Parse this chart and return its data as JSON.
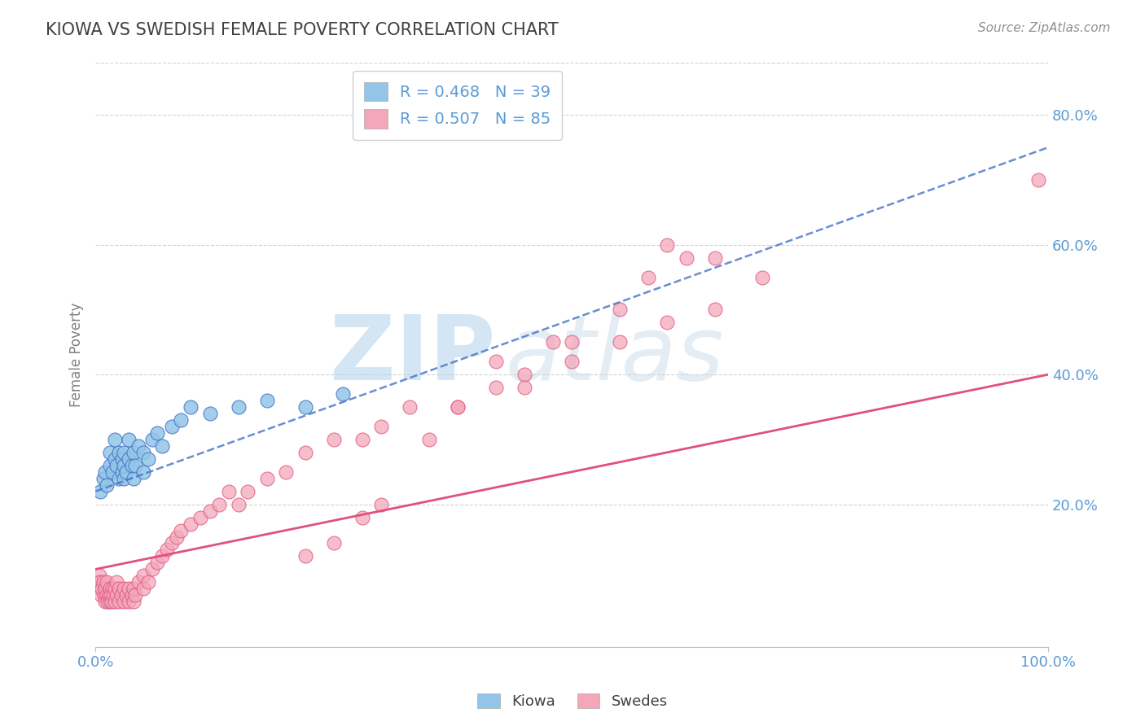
{
  "title": "KIOWA VS SWEDISH FEMALE POVERTY CORRELATION CHART",
  "source_text": "Source: ZipAtlas.com",
  "ylabel": "Female Poverty",
  "x_tick_labels": [
    "0.0%",
    "100.0%"
  ],
  "y_tick_labels": [
    "20.0%",
    "40.0%",
    "60.0%",
    "80.0%"
  ],
  "y_tick_values": [
    0.2,
    0.4,
    0.6,
    0.8
  ],
  "xlim": [
    0.0,
    1.0
  ],
  "ylim": [
    -0.02,
    0.88
  ],
  "legend_kiowa": "Kiowa",
  "legend_swedes": "Swedes",
  "R_kiowa": 0.468,
  "N_kiowa": 39,
  "R_swedes": 0.507,
  "N_swedes": 85,
  "color_kiowa": "#92c5e8",
  "color_swedes": "#f4a7b9",
  "color_line_kiowa": "#4472c4",
  "color_line_swedes": "#e05080",
  "color_title": "#404040",
  "color_source": "#909090",
  "color_axis_label": "#808080",
  "color_tick": "#5b9bd5",
  "color_grid": "#c8c8c8",
  "background_color": "#ffffff",
  "kiowa_x": [
    0.005,
    0.008,
    0.01,
    0.012,
    0.015,
    0.015,
    0.018,
    0.02,
    0.02,
    0.022,
    0.025,
    0.025,
    0.028,
    0.028,
    0.03,
    0.03,
    0.03,
    0.032,
    0.035,
    0.035,
    0.038,
    0.04,
    0.04,
    0.042,
    0.045,
    0.05,
    0.05,
    0.055,
    0.06,
    0.065,
    0.07,
    0.08,
    0.09,
    0.1,
    0.12,
    0.15,
    0.18,
    0.22,
    0.26
  ],
  "kiowa_y": [
    0.22,
    0.24,
    0.25,
    0.23,
    0.26,
    0.28,
    0.25,
    0.27,
    0.3,
    0.26,
    0.24,
    0.28,
    0.25,
    0.27,
    0.24,
    0.26,
    0.28,
    0.25,
    0.27,
    0.3,
    0.26,
    0.24,
    0.28,
    0.26,
    0.29,
    0.25,
    0.28,
    0.27,
    0.3,
    0.31,
    0.29,
    0.32,
    0.33,
    0.35,
    0.34,
    0.35,
    0.36,
    0.35,
    0.37
  ],
  "swedes_x": [
    0.002,
    0.003,
    0.004,
    0.005,
    0.006,
    0.007,
    0.008,
    0.009,
    0.01,
    0.01,
    0.012,
    0.012,
    0.013,
    0.014,
    0.015,
    0.015,
    0.016,
    0.017,
    0.018,
    0.019,
    0.02,
    0.02,
    0.022,
    0.022,
    0.025,
    0.025,
    0.027,
    0.03,
    0.03,
    0.032,
    0.035,
    0.035,
    0.038,
    0.04,
    0.04,
    0.042,
    0.045,
    0.05,
    0.05,
    0.055,
    0.06,
    0.065,
    0.07,
    0.075,
    0.08,
    0.085,
    0.09,
    0.1,
    0.11,
    0.12,
    0.13,
    0.14,
    0.15,
    0.16,
    0.18,
    0.2,
    0.22,
    0.25,
    0.28,
    0.3,
    0.33,
    0.38,
    0.42,
    0.45,
    0.5,
    0.55,
    0.58,
    0.62,
    0.5,
    0.55,
    0.6,
    0.65,
    0.7,
    0.6,
    0.65,
    0.45,
    0.42,
    0.48,
    0.38,
    0.35,
    0.3,
    0.28,
    0.25,
    0.22,
    0.99
  ],
  "swedes_y": [
    0.08,
    0.07,
    0.09,
    0.08,
    0.06,
    0.07,
    0.08,
    0.06,
    0.05,
    0.07,
    0.06,
    0.08,
    0.05,
    0.06,
    0.05,
    0.07,
    0.06,
    0.05,
    0.07,
    0.06,
    0.05,
    0.07,
    0.06,
    0.08,
    0.05,
    0.07,
    0.06,
    0.05,
    0.07,
    0.06,
    0.05,
    0.07,
    0.06,
    0.05,
    0.07,
    0.06,
    0.08,
    0.07,
    0.09,
    0.08,
    0.1,
    0.11,
    0.12,
    0.13,
    0.14,
    0.15,
    0.16,
    0.17,
    0.18,
    0.19,
    0.2,
    0.22,
    0.2,
    0.22,
    0.24,
    0.25,
    0.28,
    0.3,
    0.3,
    0.32,
    0.35,
    0.35,
    0.38,
    0.4,
    0.45,
    0.5,
    0.55,
    0.58,
    0.42,
    0.45,
    0.48,
    0.5,
    0.55,
    0.6,
    0.58,
    0.38,
    0.42,
    0.45,
    0.35,
    0.3,
    0.2,
    0.18,
    0.14,
    0.12,
    0.7
  ],
  "kiowa_trend": [
    0.0,
    1.0
  ],
  "kiowa_trend_y": [
    0.22,
    0.75
  ],
  "swedes_trend": [
    0.0,
    1.0
  ],
  "swedes_trend_y": [
    0.1,
    0.4
  ]
}
